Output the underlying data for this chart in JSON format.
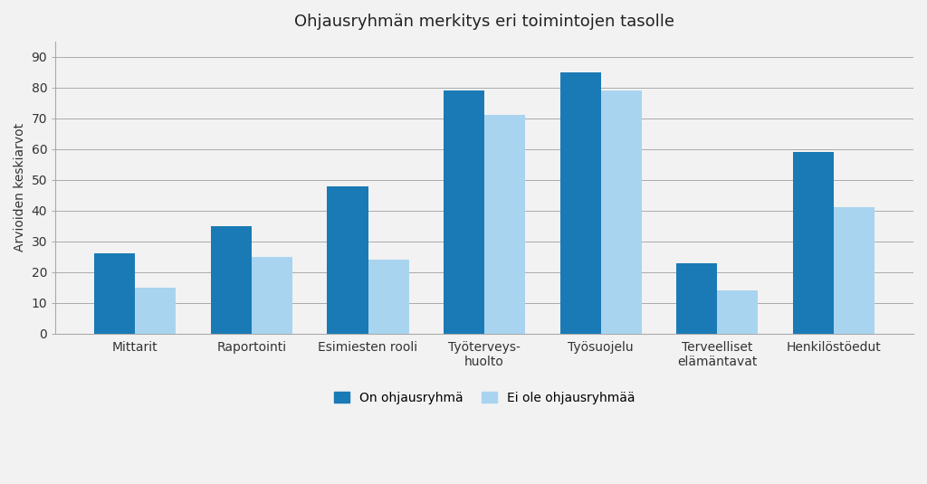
{
  "title": "Ohjausryhmän merkitys eri toimintojen tasolle",
  "ylabel": "Arvioiden keskiarvot",
  "categories": [
    "Mittarit",
    "Raportointi",
    "Esimiesten rooli",
    "Työterveys-\nhuolto",
    "Työsuojelu",
    "Terveelliset\nelämäntavat",
    "Henkilöstöedut"
  ],
  "series1_label": "On ohjausryhmä",
  "series2_label": "Ei ole ohjausryhmää",
  "series1_values": [
    26,
    35,
    48,
    79,
    85,
    23,
    59
  ],
  "series2_values": [
    15,
    25,
    24,
    71,
    79,
    14,
    41
  ],
  "color1": "#1a7ab5",
  "color2": "#a8d4f0",
  "ylim": [
    0,
    95
  ],
  "yticks": [
    0,
    10,
    20,
    30,
    40,
    50,
    60,
    70,
    80,
    90
  ],
  "background_color": "#f2f2f2",
  "plot_bg_color": "#f2f2f2",
  "grid_color": "#aaaaaa",
  "bar_width": 0.35,
  "title_fontsize": 13,
  "label_fontsize": 10,
  "tick_fontsize": 10,
  "legend_fontsize": 10
}
